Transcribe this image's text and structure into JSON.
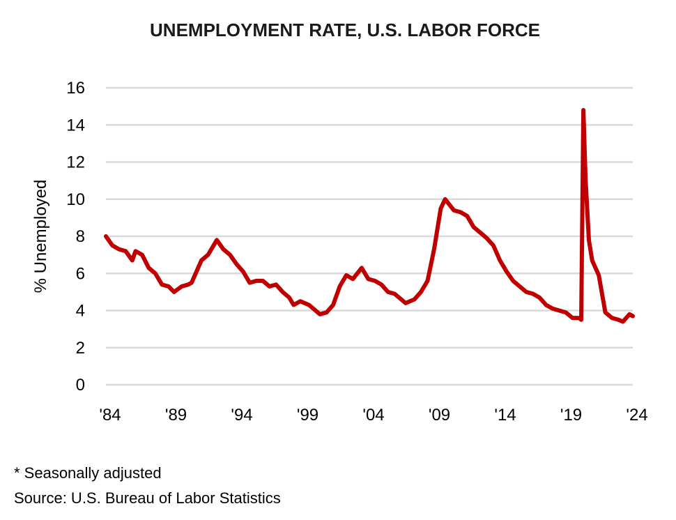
{
  "chart_data": {
    "type": "line",
    "title": "UNEMPLOYMENT RATE, U.S. LABOR FORCE",
    "ylabel": "% Unemployed",
    "xlabel": "",
    "ylim": [
      0,
      16
    ],
    "yticks": [
      "0",
      "2",
      "4",
      "6",
      "8",
      "10",
      "12",
      "14",
      "16"
    ],
    "xlim": [
      "1984-01",
      "2024-01"
    ],
    "xticks": [
      {
        "label": "'84",
        "date": "1984-01"
      },
      {
        "label": "'89",
        "date": "1989-01"
      },
      {
        "label": "'94",
        "date": "1994-01"
      },
      {
        "label": "'99",
        "date": "1999-01"
      },
      {
        "label": "'04",
        "date": "2004-01"
      },
      {
        "label": "'09",
        "date": "2009-01"
      },
      {
        "label": "'14",
        "date": "2014-01"
      },
      {
        "label": "'19",
        "date": "2019-01"
      },
      {
        "label": "'24",
        "date": "2024-01"
      }
    ],
    "grid": true,
    "line_color": "#c00000",
    "series": [
      {
        "points": [
          [
            "1984-01",
            8.0
          ],
          [
            "1984-07",
            7.5
          ],
          [
            "1985-01",
            7.3
          ],
          [
            "1985-07",
            7.2
          ],
          [
            "1986-01",
            6.7
          ],
          [
            "1986-04",
            7.2
          ],
          [
            "1986-10",
            7.0
          ],
          [
            "1987-04",
            6.3
          ],
          [
            "1987-10",
            6.0
          ],
          [
            "1988-04",
            5.4
          ],
          [
            "1988-10",
            5.3
          ],
          [
            "1989-03",
            5.0
          ],
          [
            "1989-10",
            5.3
          ],
          [
            "1990-04",
            5.4
          ],
          [
            "1990-07",
            5.5
          ],
          [
            "1990-10",
            5.9
          ],
          [
            "1991-04",
            6.7
          ],
          [
            "1991-10",
            7.0
          ],
          [
            "1992-06",
            7.8
          ],
          [
            "1992-12",
            7.3
          ],
          [
            "1993-06",
            7.0
          ],
          [
            "1993-12",
            6.5
          ],
          [
            "1994-06",
            6.1
          ],
          [
            "1994-12",
            5.5
          ],
          [
            "1995-06",
            5.6
          ],
          [
            "1995-12",
            5.6
          ],
          [
            "1996-06",
            5.3
          ],
          [
            "1996-12",
            5.4
          ],
          [
            "1997-06",
            5.0
          ],
          [
            "1997-12",
            4.7
          ],
          [
            "1998-04",
            4.3
          ],
          [
            "1998-10",
            4.5
          ],
          [
            "1999-06",
            4.3
          ],
          [
            "1999-12",
            4.0
          ],
          [
            "2000-04",
            3.8
          ],
          [
            "2000-10",
            3.9
          ],
          [
            "2001-04",
            4.3
          ],
          [
            "2001-10",
            5.3
          ],
          [
            "2002-04",
            5.9
          ],
          [
            "2002-10",
            5.7
          ],
          [
            "2003-06",
            6.3
          ],
          [
            "2003-12",
            5.7
          ],
          [
            "2004-06",
            5.6
          ],
          [
            "2004-12",
            5.4
          ],
          [
            "2005-06",
            5.0
          ],
          [
            "2005-12",
            4.9
          ],
          [
            "2006-06",
            4.6
          ],
          [
            "2006-10",
            4.4
          ],
          [
            "2007-06",
            4.6
          ],
          [
            "2007-12",
            5.0
          ],
          [
            "2008-06",
            5.6
          ],
          [
            "2008-12",
            7.3
          ],
          [
            "2009-06",
            9.5
          ],
          [
            "2009-10",
            10.0
          ],
          [
            "2010-06",
            9.4
          ],
          [
            "2010-12",
            9.3
          ],
          [
            "2011-06",
            9.1
          ],
          [
            "2011-12",
            8.5
          ],
          [
            "2012-06",
            8.2
          ],
          [
            "2012-12",
            7.9
          ],
          [
            "2013-06",
            7.5
          ],
          [
            "2013-12",
            6.7
          ],
          [
            "2014-06",
            6.1
          ],
          [
            "2014-12",
            5.6
          ],
          [
            "2015-06",
            5.3
          ],
          [
            "2015-12",
            5.0
          ],
          [
            "2016-06",
            4.9
          ],
          [
            "2016-12",
            4.7
          ],
          [
            "2017-06",
            4.3
          ],
          [
            "2017-12",
            4.1
          ],
          [
            "2018-06",
            4.0
          ],
          [
            "2018-12",
            3.9
          ],
          [
            "2019-06",
            3.6
          ],
          [
            "2019-12",
            3.6
          ],
          [
            "2020-02",
            3.5
          ],
          [
            "2020-04",
            14.8
          ],
          [
            "2020-06",
            11.0
          ],
          [
            "2020-09",
            7.8
          ],
          [
            "2020-12",
            6.7
          ],
          [
            "2021-06",
            5.9
          ],
          [
            "2021-12",
            3.9
          ],
          [
            "2022-06",
            3.6
          ],
          [
            "2022-12",
            3.5
          ],
          [
            "2023-04",
            3.4
          ],
          [
            "2023-10",
            3.8
          ],
          [
            "2024-01",
            3.7
          ]
        ]
      }
    ],
    "notes": [
      "* Seasonally adjusted",
      "Source: U.S. Bureau of Labor Statistics"
    ]
  }
}
